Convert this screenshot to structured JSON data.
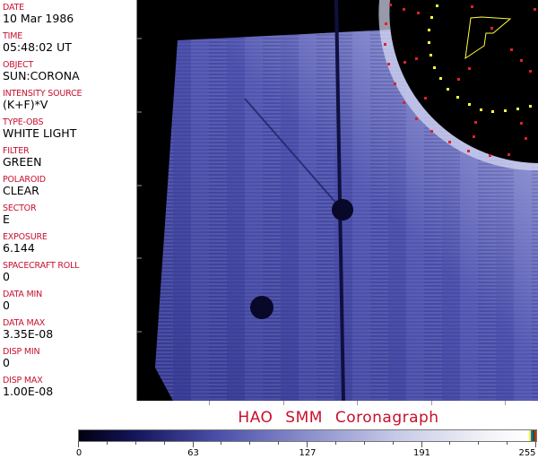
{
  "metadata_fields": [
    {
      "label": "DATE",
      "value": "10 Mar 1986"
    },
    {
      "label": "TIME",
      "value": "05:48:02 UT"
    },
    {
      "label": "OBJECT",
      "value": "SUN:CORONA"
    },
    {
      "label": "INTENSITY SOURCE",
      "value": "(K+F)*V"
    },
    {
      "label": "TYPE-OBS",
      "value": "WHITE LIGHT"
    },
    {
      "label": "FILTER",
      "value": "GREEN"
    },
    {
      "label": "POLAROID",
      "value": "CLEAR"
    },
    {
      "label": "SECTOR",
      "value": "E"
    },
    {
      "label": "EXPOSURE",
      "value": "6.144"
    },
    {
      "label": "SPACECRAFT ROLL",
      "value": "0"
    },
    {
      "label": "DATA MIN",
      "value": "0"
    },
    {
      "label": "DATA MAX",
      "value": "3.35E-08"
    },
    {
      "label": "DISP MIN",
      "value": "0"
    },
    {
      "label": "DISP MAX",
      "value": "1.00E-08"
    }
  ],
  "title": "HAO  SMM Coronagraph",
  "colorbar": {
    "ticks": [
      "0",
      "63",
      "127",
      "191",
      "255"
    ],
    "colors": {
      "dark": "#000010",
      "mid": "#4a4ea8",
      "light": "#ffffff"
    }
  },
  "colors": {
    "label": "#c8102e",
    "overlay_red": "#e0202a",
    "overlay_yellow": "#ffff40"
  }
}
